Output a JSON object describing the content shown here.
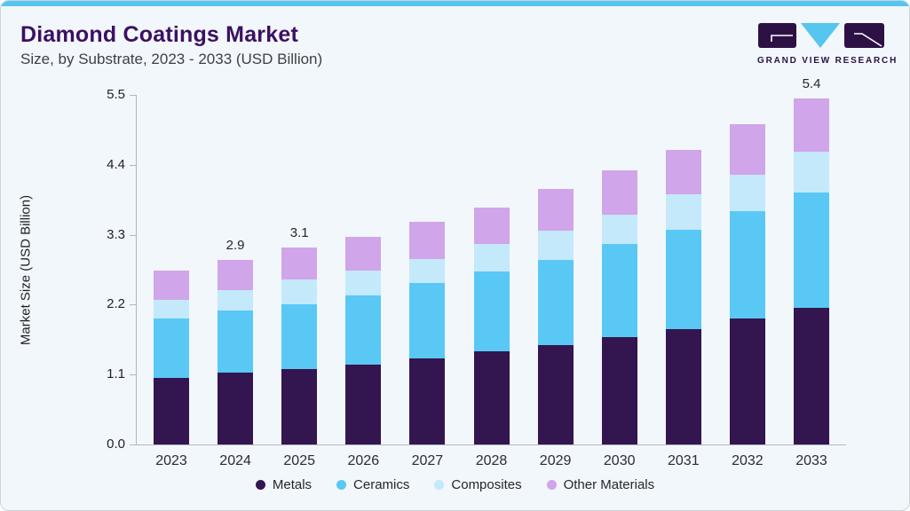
{
  "header": {
    "title": "Diamond Coatings Market",
    "subtitle": "Size, by Substrate, 2023 - 2033 (USD Billion)",
    "logo_text": "GRAND VIEW RESEARCH"
  },
  "colors": {
    "accent_bar": "#56c5ef",
    "card_background": "#f1f7fa",
    "title_text": "#3d1062",
    "metals": "#331550",
    "ceramics": "#5ac8f5",
    "composites": "#c4e9fb",
    "other_materials": "#d0a5e9",
    "axis": "#b3b8bd"
  },
  "chart_data": {
    "type": "bar",
    "stacked": true,
    "title": "Diamond Coatings Market Size, by Substrate, 2023 - 2033 (USD Billion)",
    "xlabel": "",
    "ylabel": "Market Size (USD Billion)",
    "ylim": [
      0,
      5.5
    ],
    "yticks": [
      "0.0",
      "1.1",
      "2.2",
      "3.3",
      "4.4",
      "5.5"
    ],
    "grid": false,
    "legend_position": "bottom",
    "categories": [
      "2023",
      "2024",
      "2025",
      "2026",
      "2027",
      "2028",
      "2029",
      "2030",
      "2031",
      "2032",
      "2033"
    ],
    "series": [
      {
        "name": "Metals",
        "color": "#331550",
        "values": [
          1.05,
          1.13,
          1.19,
          1.26,
          1.36,
          1.46,
          1.56,
          1.69,
          1.81,
          1.98,
          2.15
        ]
      },
      {
        "name": "Ceramics",
        "color": "#5ac8f5",
        "values": [
          0.93,
          0.98,
          1.02,
          1.09,
          1.18,
          1.26,
          1.35,
          1.46,
          1.57,
          1.69,
          1.82
        ]
      },
      {
        "name": "Composites",
        "color": "#c4e9fb",
        "values": [
          0.3,
          0.32,
          0.38,
          0.39,
          0.38,
          0.43,
          0.45,
          0.47,
          0.55,
          0.57,
          0.63
        ]
      },
      {
        "name": "Other Materials",
        "color": "#d0a5e9",
        "values": [
          0.46,
          0.47,
          0.51,
          0.53,
          0.58,
          0.58,
          0.66,
          0.69,
          0.7,
          0.8,
          0.84
        ]
      }
    ],
    "bar_value_labels": {
      "2024": "2.9",
      "2025": "3.1",
      "2033": "5.4"
    }
  }
}
